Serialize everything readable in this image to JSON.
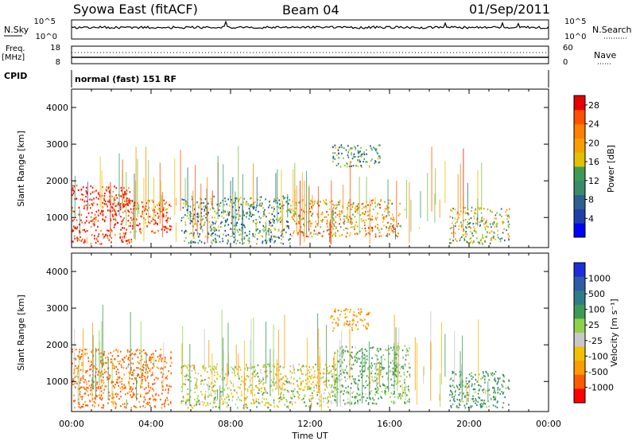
{
  "header": {
    "station": "Syowa East (fitACF)",
    "beam": "Beam 04",
    "date": "01/Sep/2011"
  },
  "strips": {
    "nsky_label": "N.Sky",
    "nsky_ticks": [
      "10^5",
      "10^0"
    ],
    "nsearch_label": "N.Search",
    "nsearch_ticks": [
      "10^5",
      "10^0"
    ],
    "freq_label": "Freq.",
    "freq_unit": "[MHz]",
    "freq_ticks": [
      "18",
      "8"
    ],
    "nave_label": "Nave",
    "nave_ticks": [
      "60",
      "0"
    ],
    "cpid_label": "CPID",
    "cpid_value": "normal (fast) 151 RF"
  },
  "colors": {
    "power_scale": [
      "#0000ff",
      "#1f3fa8",
      "#1d6f7a",
      "#3a9a6e",
      "#7fc23a",
      "#f0c000",
      "#ff8c00",
      "#ff5a00",
      "#e81e00",
      "#ff0000"
    ],
    "velocity_scale": [
      "#1c2ed8",
      "#2f5ca8",
      "#2e7d86",
      "#3f9a56",
      "#8fd24a",
      "#c8c8c8",
      "#f0c000",
      "#ff9a00",
      "#ff5a00",
      "#ff0000"
    ]
  },
  "chart_data": [
    {
      "type": "heatmap",
      "name": "power",
      "xlabel": "Time UT",
      "ylabel": "Slant Range [km]",
      "x_ticks": [
        "00:00",
        "04:00",
        "08:00",
        "12:00",
        "16:00",
        "20:00",
        "00:00"
      ],
      "x_range_hours": [
        0,
        24
      ],
      "y_ticks": [
        1000,
        2000,
        3000,
        4000
      ],
      "y_range_km": [
        180,
        4500
      ],
      "colorbar_label": "Power [dB]",
      "colorbar_ticks": [
        4,
        8,
        12,
        16,
        20,
        24,
        28
      ],
      "colorbar_range": [
        0,
        30
      ],
      "echo_regions": [
        {
          "t0": 0.0,
          "t1": 3.0,
          "r0": 300,
          "r1": 1900,
          "level": 26
        },
        {
          "t0": 3.0,
          "t1": 5.0,
          "r0": 600,
          "r1": 1500,
          "level": 24
        },
        {
          "t0": 5.5,
          "t1": 11.0,
          "r0": 300,
          "r1": 1600,
          "level": 10
        },
        {
          "t0": 11.0,
          "t1": 16.5,
          "r0": 500,
          "r1": 1500,
          "level": 18
        },
        {
          "t0": 13.0,
          "t1": 15.5,
          "r0": 2400,
          "r1": 3000,
          "level": 10
        },
        {
          "t0": 19.0,
          "t1": 22.0,
          "r0": 300,
          "r1": 1300,
          "level": 14
        }
      ]
    },
    {
      "type": "heatmap",
      "name": "velocity",
      "xlabel": "Time UT",
      "ylabel": "Slant Range [km]",
      "x_ticks": [
        "00:00",
        "04:00",
        "08:00",
        "12:00",
        "16:00",
        "20:00",
        "00:00"
      ],
      "x_range_hours": [
        0,
        24
      ],
      "y_ticks": [
        1000,
        2000,
        3000,
        4000
      ],
      "y_range_km": [
        180,
        4500
      ],
      "colorbar_label": "Velocity [m s⁻¹]",
      "colorbar_ticks": [
        1000,
        500,
        100,
        25,
        -25,
        -100,
        -500,
        -1000
      ],
      "echo_regions": [
        {
          "t0": 0.0,
          "t1": 5.0,
          "r0": 300,
          "r1": 1900,
          "velocity": -300
        },
        {
          "t0": 5.5,
          "t1": 13.0,
          "r0": 300,
          "r1": 1500,
          "velocity": 0
        },
        {
          "t0": 13.0,
          "t1": 17.0,
          "r0": 400,
          "r1": 2000,
          "velocity": 120
        },
        {
          "t0": 13.0,
          "t1": 15.0,
          "r0": 2400,
          "r1": 3000,
          "velocity": -150
        },
        {
          "t0": 19.0,
          "t1": 22.0,
          "r0": 300,
          "r1": 1300,
          "velocity": 200
        }
      ]
    }
  ]
}
